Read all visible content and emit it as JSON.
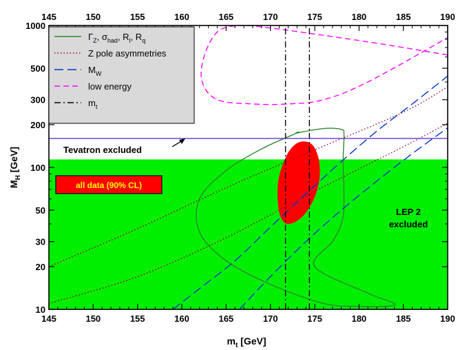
{
  "chart_data": {
    "type": "line",
    "xlabel": "m",
    "xlabel_sub": "t",
    "xlabel_unit": " [GeV]",
    "ylabel": "M",
    "ylabel_sub": "H",
    "ylabel_unit": " [GeV]",
    "xlim": [
      145,
      190
    ],
    "ylim": [
      10,
      1000
    ],
    "yscale": "log",
    "x_ticks": [
      145,
      150,
      155,
      160,
      165,
      170,
      175,
      180,
      185,
      190
    ],
    "y_ticks": [
      10,
      20,
      30,
      50,
      100,
      200,
      300,
      500,
      1000
    ],
    "top_axis_ticks": [
      145,
      150,
      155,
      160,
      165,
      170,
      175,
      180,
      185,
      190
    ],
    "colors": {
      "lep2_region": "#00ee00",
      "all_data_ellipse": "#ff0000",
      "tevatron_line": "#6633cc",
      "legend_bg": "#d9d9d9"
    },
    "regions": [
      {
        "name": "LEP 2 excluded",
        "x": [
          145,
          190
        ],
        "y": [
          10,
          114
        ]
      },
      {
        "name": "Tevatron excluded",
        "x": [
          145,
          190
        ],
        "y": [
          114,
          160
        ]
      }
    ],
    "annotations": {
      "tevatron": "Tevatron excluded",
      "lep2_line1": "LEP 2",
      "lep2_line2": "excluded",
      "all_data": "all data (90% CL)"
    },
    "legend": {
      "position": "top-left",
      "entries": [
        {
          "label_parts": [
            "Γ",
            "Z",
            ", σ",
            "had",
            ", R",
            "l",
            ", R",
            "q"
          ],
          "color": "#2e8b2e",
          "style": "solid"
        },
        {
          "label": "Z pole asymmetries",
          "color": "#990033",
          "style": "dotted"
        },
        {
          "label_parts": [
            "M",
            "W"
          ],
          "color": "#0033cc",
          "style": "long-dash"
        },
        {
          "label": "low energy",
          "color": "#ff00ff",
          "style": "dash"
        },
        {
          "label_parts": [
            "m",
            "t"
          ],
          "color": "#000000",
          "style": "dash-dot"
        }
      ]
    },
    "series": [
      {
        "name": "all data (90% CL)",
        "type": "ellipse",
        "color": "#ff0000",
        "x": [
          172.0,
          173.0,
          174.0,
          174.9,
          175.5,
          175.5,
          174.9,
          174.0,
          173.0,
          172.1,
          171.4,
          170.9,
          170.8,
          171.0,
          171.4
        ],
        "y": [
          40,
          42,
          48,
          60,
          80,
          110,
          140,
          152,
          148,
          130,
          105,
          82,
          62,
          48,
          42
        ]
      },
      {
        "name": "Γ_Z contour",
        "type": "closed",
        "color": "#2e8b2e",
        "style": "solid",
        "x": [
          173.0,
          176.0,
          178.0,
          178.3,
          178.2,
          178.3,
          178.0,
          177.0,
          175.0,
          181.0,
          184.0,
          183.0,
          180.0,
          176.0,
          170.0,
          165.0,
          162.0,
          162.0,
          165.0,
          169.0,
          173.0
        ],
        "y": [
          175,
          188,
          185,
          170,
          110,
          55,
          40,
          30,
          20,
          13,
          11,
          10.5,
          10.5,
          11,
          15,
          22,
          35,
          60,
          95,
          135,
          175
        ]
      },
      {
        "name": "Z pole asymmetries upper",
        "type": "line",
        "color": "#990033",
        "style": "dotted",
        "x": [
          145,
          155,
          165,
          175,
          185,
          190
        ],
        "y": [
          20,
          37,
          72,
          133,
          245,
          370
        ]
      },
      {
        "name": "Z pole asymmetries lower",
        "type": "line",
        "color": "#990033",
        "style": "dotted",
        "x": [
          145,
          155,
          165,
          175,
          185,
          190
        ],
        "y": [
          11,
          17,
          32,
          68,
          140,
          205
        ]
      },
      {
        "name": "M_W left",
        "type": "line",
        "color": "#0033cc",
        "style": "long-dash",
        "x": [
          159,
          162,
          166,
          170,
          174,
          178,
          182,
          186,
          190
        ],
        "y": [
          10,
          14,
          22,
          38,
          65,
          110,
          180,
          280,
          440
        ]
      },
      {
        "name": "M_W right",
        "type": "line",
        "color": "#0033cc",
        "style": "long-dash",
        "x": [
          166.5,
          170,
          174,
          178,
          182,
          186,
          190
        ],
        "y": [
          10,
          17,
          30,
          50,
          80,
          125,
          190
        ]
      },
      {
        "name": "low energy",
        "type": "line",
        "color": "#ff00ff",
        "style": "dash",
        "x": [
          190,
          182,
          175,
          170,
          166.5,
          164,
          162.5,
          162.3,
          164,
          168,
          172,
          176,
          181,
          190
        ],
        "y": [
          620,
          750,
          870,
          960,
          1000,
          900,
          600,
          400,
          300,
          280,
          280,
          300,
          400,
          820
        ]
      },
      {
        "name": "m_t left",
        "type": "vline",
        "color": "#000000",
        "style": "dash-dot",
        "x": [
          171.7,
          171.7
        ],
        "y": [
          10,
          1000
        ]
      },
      {
        "name": "m_t right",
        "type": "vline",
        "color": "#000000",
        "style": "dash-dot",
        "x": [
          174.4,
          174.4
        ],
        "y": [
          10,
          1000
        ]
      },
      {
        "name": "Tevatron boundary",
        "type": "hline",
        "color": "#6633cc",
        "style": "solid",
        "x": [
          145,
          190
        ],
        "y": [
          160,
          160
        ]
      }
    ]
  }
}
